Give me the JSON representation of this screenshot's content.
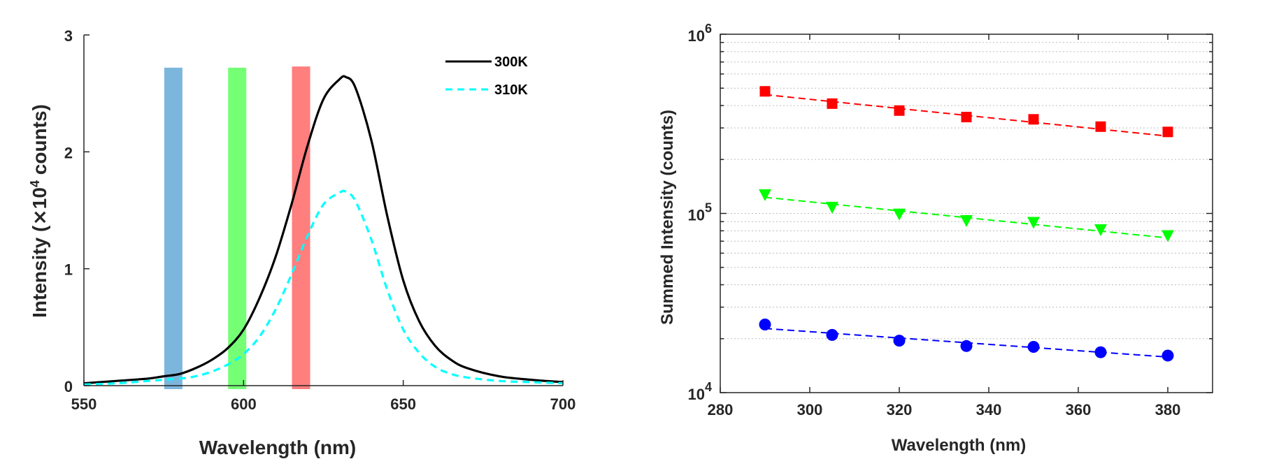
{
  "chart_data": [
    {
      "type": "line",
      "xlabel": "Wavelength (nm)",
      "ylabel": "Intensity (×10⁴ counts)",
      "ylabel_parts": [
        "Intensity (",
        "×",
        "10",
        "4",
        " counts)"
      ],
      "xlim": [
        550,
        700
      ],
      "ylim": [
        0,
        3
      ],
      "xticks": [
        550,
        600,
        650,
        700
      ],
      "yticks": [
        0,
        1,
        2,
        3
      ],
      "legend_position": "top-right",
      "grid": false,
      "series": [
        {
          "name": "300K",
          "color": "#000000",
          "style": "solid",
          "x": [
            550,
            560,
            570,
            575,
            580,
            585,
            590,
            595,
            600,
            605,
            610,
            615,
            620,
            625,
            630,
            632,
            635,
            640,
            645,
            650,
            655,
            660,
            665,
            670,
            680,
            690,
            700
          ],
          "y": [
            0.02,
            0.04,
            0.06,
            0.08,
            0.1,
            0.15,
            0.22,
            0.32,
            0.48,
            0.75,
            1.1,
            1.55,
            2.05,
            2.45,
            2.62,
            2.64,
            2.55,
            2.1,
            1.45,
            0.9,
            0.55,
            0.34,
            0.22,
            0.15,
            0.08,
            0.05,
            0.03
          ]
        },
        {
          "name": "310K",
          "color": "#00FFFF",
          "style": "dashed",
          "x": [
            550,
            560,
            570,
            575,
            580,
            585,
            590,
            595,
            600,
            605,
            610,
            615,
            620,
            625,
            630,
            632,
            635,
            640,
            645,
            650,
            655,
            660,
            665,
            670,
            680,
            690,
            700
          ],
          "y": [
            0.01,
            0.02,
            0.04,
            0.05,
            0.06,
            0.08,
            0.12,
            0.18,
            0.27,
            0.42,
            0.65,
            0.95,
            1.28,
            1.55,
            1.65,
            1.66,
            1.58,
            1.25,
            0.82,
            0.48,
            0.28,
            0.16,
            0.1,
            0.07,
            0.04,
            0.03,
            0.02
          ]
        }
      ],
      "bands": [
        {
          "color": "#6FAED8",
          "x_center": 578,
          "ymax": 2.72
        },
        {
          "color": "#66FF66",
          "x_center": 598,
          "ymax": 2.72
        },
        {
          "color": "#FF7070",
          "x_center": 618,
          "ymax": 2.73
        }
      ]
    },
    {
      "type": "scatter",
      "xlabel": "Wavelength (nm)",
      "ylabel": "Summed Intensity (counts)",
      "xlim": [
        280,
        390
      ],
      "ylim": [
        10000,
        1000000
      ],
      "yscale": "log",
      "xticks": [
        280,
        300,
        320,
        340,
        360,
        380
      ],
      "yticks": [
        {
          "base": "10",
          "exp": "4",
          "value": 10000
        },
        {
          "base": "10",
          "exp": "5",
          "value": 100000
        },
        {
          "base": "10",
          "exp": "6",
          "value": 1000000
        }
      ],
      "grid": true,
      "series": [
        {
          "color": "#FF0000",
          "marker": "square",
          "x": [
            290,
            305,
            320,
            335,
            350,
            365,
            380
          ],
          "y": [
            480000,
            410000,
            375000,
            345000,
            335000,
            305000,
            285000
          ],
          "fit": [
            [
              290,
              460000
            ],
            [
              380,
              270000
            ]
          ]
        },
        {
          "color": "#00FF00",
          "marker": "triangle-down",
          "x": [
            290,
            305,
            320,
            335,
            350,
            365,
            380
          ],
          "y": [
            127000,
            108000,
            99000,
            91000,
            89000,
            81000,
            75000
          ],
          "fit": [
            [
              290,
              123000
            ],
            [
              380,
              73000
            ]
          ]
        },
        {
          "color": "#0000FF",
          "marker": "circle",
          "x": [
            290,
            305,
            320,
            335,
            350,
            365,
            380
          ],
          "y": [
            24000,
            21000,
            19500,
            18200,
            18000,
            16800,
            16100
          ],
          "fit": [
            [
              290,
              22800
            ],
            [
              380,
              15800
            ]
          ]
        }
      ]
    }
  ]
}
